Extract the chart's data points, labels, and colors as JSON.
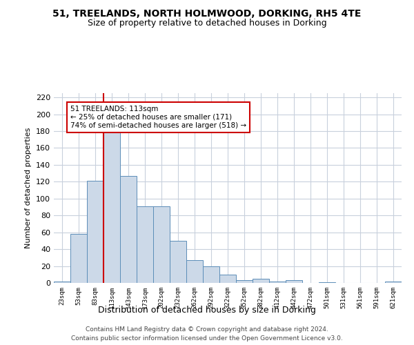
{
  "title1": "51, TREELANDS, NORTH HOLMWOOD, DORKING, RH5 4TE",
  "title2": "Size of property relative to detached houses in Dorking",
  "xlabel": "Distribution of detached houses by size in Dorking",
  "ylabel": "Number of detached properties",
  "bin_labels": [
    "23sqm",
    "53sqm",
    "83sqm",
    "113sqm",
    "143sqm",
    "173sqm",
    "202sqm",
    "232sqm",
    "262sqm",
    "292sqm",
    "322sqm",
    "352sqm",
    "382sqm",
    "412sqm",
    "442sqm",
    "472sqm",
    "501sqm",
    "531sqm",
    "561sqm",
    "591sqm",
    "621sqm"
  ],
  "bar_heights": [
    2,
    58,
    121,
    179,
    127,
    91,
    91,
    50,
    27,
    20,
    10,
    3,
    5,
    2,
    3,
    0,
    1,
    0,
    0,
    0,
    2
  ],
  "bar_color": "#ccd9e8",
  "bar_edge_color": "#5b8db8",
  "vline_color": "#cc0000",
  "annotation_text": "51 TREELANDS: 113sqm\n← 25% of detached houses are smaller (171)\n74% of semi-detached houses are larger (518) →",
  "annotation_box_color": "#ffffff",
  "annotation_box_edge": "#cc0000",
  "footer1": "Contains HM Land Registry data © Crown copyright and database right 2024.",
  "footer2": "Contains public sector information licensed under the Open Government Licence v3.0.",
  "ylim": [
    0,
    225
  ],
  "yticks": [
    0,
    20,
    40,
    60,
    80,
    100,
    120,
    140,
    160,
    180,
    200,
    220
  ],
  "background_color": "#ffffff",
  "grid_color": "#c8d0dc",
  "title1_fontsize": 10,
  "title2_fontsize": 9
}
